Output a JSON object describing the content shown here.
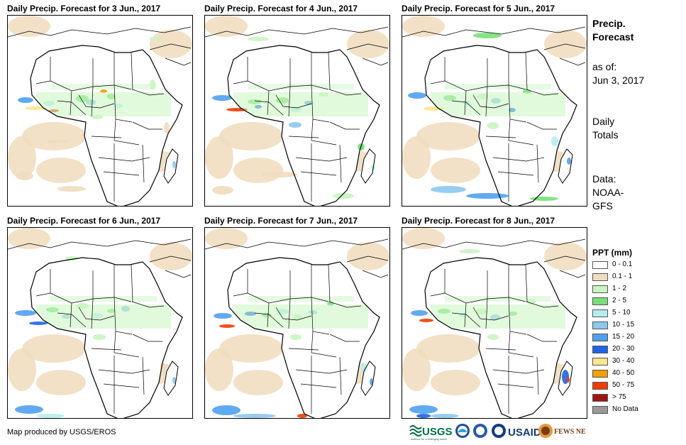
{
  "panels": [
    {
      "title": "Daily Precip. Forecast for 3 Jun., 2017"
    },
    {
      "title": "Daily Precip. Forecast for 4 Jun., 2017"
    },
    {
      "title": "Daily Precip. Forecast for 5 Jun., 2017"
    },
    {
      "title": "Daily Precip. Forecast for 6 Jun., 2017"
    },
    {
      "title": "Daily Precip. Forecast for 7 Jun., 2017"
    },
    {
      "title": "Daily Precip. Forecast for 8 Jun., 2017"
    }
  ],
  "sidebar": {
    "title_line1": "Precip.",
    "title_line2": "Forecast",
    "asof_line1": "as of:",
    "asof_line2": "Jun 3, 2017",
    "totals_line1": "Daily",
    "totals_line2": "Totals",
    "data_line1": "Data:",
    "data_line2": "NOAA-",
    "data_line3": "GFS"
  },
  "legend": {
    "title": "PPT (mm)",
    "items": [
      {
        "label": "0 - 0.1",
        "color": "#ffffff"
      },
      {
        "label": "0.1 - 1",
        "color": "#f0dcbc"
      },
      {
        "label": "1 - 2",
        "color": "#c8f5c0"
      },
      {
        "label": "2 - 5",
        "color": "#78e078"
      },
      {
        "label": "5 - 10",
        "color": "#b4eef0"
      },
      {
        "label": "10 - 15",
        "color": "#8cc8f0"
      },
      {
        "label": "15 - 20",
        "color": "#50a0f0"
      },
      {
        "label": "20 - 30",
        "color": "#1e64e6"
      },
      {
        "label": "30 - 40",
        "color": "#fae68c"
      },
      {
        "label": "40 - 50",
        "color": "#f5a000"
      },
      {
        "label": "50 - 75",
        "color": "#f03c00"
      },
      {
        "label": "> 75",
        "color": "#a01414"
      },
      {
        "label": "No Data",
        "color": "#999999"
      }
    ]
  },
  "credit": "Map produced by USGS/EROS",
  "logos": {
    "usgs": "USGS",
    "usgs_tagline": "science for a changing world",
    "usaid": "USAID",
    "fews": "FEWS NET"
  }
}
